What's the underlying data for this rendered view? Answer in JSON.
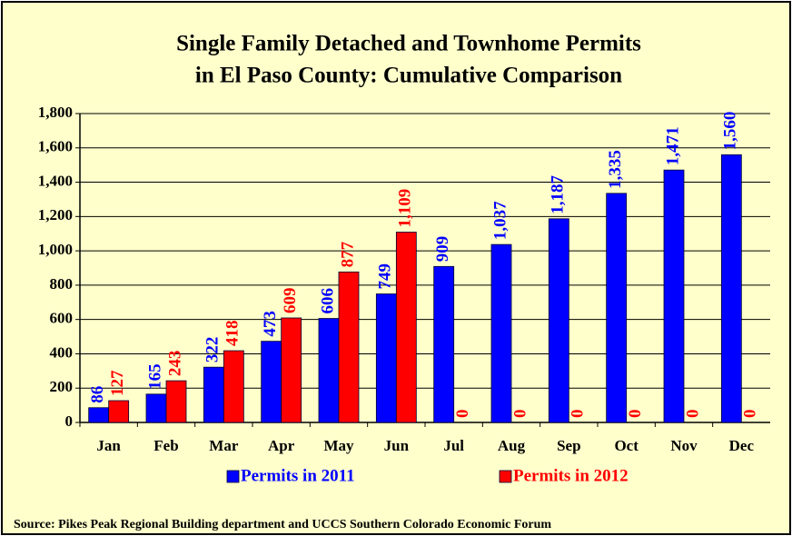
{
  "chart_data": {
    "type": "bar",
    "title": [
      "Single Family Detached and Townhome Permits",
      "in El Paso County:  Cumulative Comparison"
    ],
    "categories": [
      "Jan",
      "Feb",
      "Mar",
      "Apr",
      "May",
      "Jun",
      "Jul",
      "Aug",
      "Sep",
      "Oct",
      "Nov",
      "Dec"
    ],
    "series": [
      {
        "name": "Permits in 2011",
        "color": "#0000ff",
        "values": [
          86,
          165,
          322,
          473,
          606,
          749,
          909,
          1037,
          1187,
          1335,
          1471,
          1560
        ],
        "value_labels": [
          "86",
          "165",
          "322",
          "473",
          "606",
          "749",
          "909",
          "1,037",
          "1,187",
          "1,335",
          "1,471",
          "1,560"
        ]
      },
      {
        "name": "Permits in 2012",
        "color": "#ff0000",
        "values": [
          127,
          243,
          418,
          609,
          877,
          1109,
          0,
          0,
          0,
          0,
          0,
          0
        ],
        "value_labels": [
          "127",
          "243",
          "418",
          "609",
          "877",
          "1,109",
          "0",
          "0",
          "0",
          "0",
          "0",
          "0"
        ]
      }
    ],
    "ylim": [
      0,
      1800
    ],
    "yticks": [
      0,
      200,
      400,
      600,
      800,
      {
        "value": 1000,
        "label": "1,000"
      },
      {
        "value": 1200,
        "label": "1,200"
      },
      {
        "value": 1400,
        "label": "1,400"
      },
      {
        "value": 1600,
        "label": "1,600"
      },
      {
        "value": 1800,
        "label": "1,800"
      }
    ],
    "grid": true,
    "legend": "bottom",
    "source": "Source: Pikes Peak Regional Building department and UCCS  Southern Colorado Economic Forum"
  }
}
